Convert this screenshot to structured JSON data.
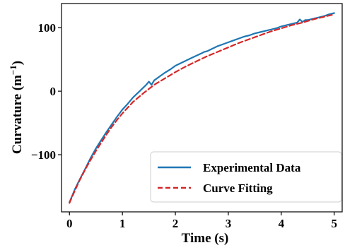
{
  "chart_data": {
    "type": "line",
    "title": "",
    "xlabel": "Time (s)",
    "ylabel_main": "Curvature (m",
    "ylabel_exp": "−1",
    "ylabel_close": ")",
    "xlim": [
      -0.15,
      5.15
    ],
    "ylim": [
      -190,
      138
    ],
    "xticks": [
      0,
      1,
      2,
      3,
      4,
      5
    ],
    "yticks": [
      -100,
      0,
      100
    ],
    "ytick_labels": [
      "−100",
      "0",
      "100"
    ],
    "grid": false,
    "legend_position": "bottom-right",
    "series": [
      {
        "name": "Experimental Data",
        "color": "#1f77b4",
        "style": "solid",
        "x": [
          0,
          0.05,
          0.1,
          0.2,
          0.3,
          0.4,
          0.5,
          0.6,
          0.7,
          0.8,
          0.9,
          1.0,
          1.1,
          1.2,
          1.3,
          1.4,
          1.45,
          1.5,
          1.55,
          1.6,
          1.7,
          1.8,
          1.9,
          2.0,
          2.1,
          2.2,
          2.3,
          2.4,
          2.5,
          2.55,
          2.6,
          2.7,
          2.8,
          2.9,
          3.0,
          3.1,
          3.2,
          3.3,
          3.4,
          3.5,
          3.6,
          3.7,
          3.8,
          3.9,
          4.0,
          4.1,
          4.2,
          4.3,
          4.35,
          4.4,
          4.45,
          4.5,
          4.6,
          4.7,
          4.8,
          4.9,
          5.0
        ],
        "y": [
          -175,
          -165,
          -155,
          -138,
          -122,
          -105,
          -90,
          -77,
          -64,
          -52,
          -40,
          -29,
          -20,
          -10,
          -2,
          6,
          10,
          15,
          10,
          17,
          23,
          29,
          34,
          40,
          44,
          48,
          52,
          56,
          60,
          62,
          63,
          67,
          71,
          74,
          77,
          80,
          83,
          86,
          88,
          91,
          93,
          95,
          97,
          99,
          102,
          104,
          106,
          108,
          113,
          109,
          112,
          112,
          114,
          116,
          118,
          121,
          123
        ]
      },
      {
        "name": "Curve Fitting",
        "color": "#d62728",
        "style": "dashed",
        "x": [
          0,
          0.1,
          0.2,
          0.3,
          0.4,
          0.5,
          0.6,
          0.7,
          0.8,
          0.9,
          1.0,
          1.2,
          1.4,
          1.6,
          1.8,
          2.0,
          2.2,
          2.4,
          2.6,
          2.8,
          3.0,
          3.2,
          3.4,
          3.6,
          3.8,
          4.0,
          4.2,
          4.4,
          4.6,
          4.8,
          5.0
        ],
        "y": [
          -176,
          -157,
          -139,
          -123,
          -108,
          -94,
          -81,
          -68,
          -56,
          -45,
          -35,
          -17,
          -3,
          10,
          20,
          30,
          39,
          47,
          55,
          62,
          69,
          76,
          82,
          88,
          94,
          99,
          104,
          108,
          113,
          117,
          121
        ]
      }
    ]
  }
}
